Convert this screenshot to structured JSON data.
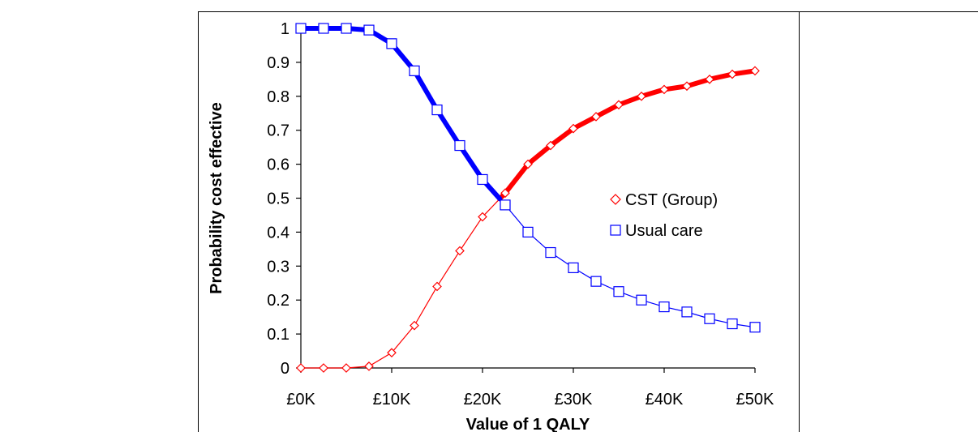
{
  "chart_data": {
    "type": "line",
    "xlabel": "Value of 1 QALY",
    "ylabel": "Probability cost effective",
    "x": [
      0,
      2500,
      5000,
      7500,
      10000,
      12500,
      15000,
      17500,
      20000,
      22500,
      25000,
      27500,
      30000,
      32500,
      35000,
      37500,
      40000,
      42500,
      45000,
      47500,
      50000
    ],
    "x_ticks": [
      0,
      10000,
      20000,
      30000,
      40000,
      50000
    ],
    "x_tick_labels": [
      "£0K",
      "£10K",
      "£20K",
      "£30K",
      "£40K",
      "£50K"
    ],
    "xlim": [
      0,
      50000
    ],
    "y_ticks": [
      0,
      0.1,
      0.2,
      0.3,
      0.4,
      0.5,
      0.6,
      0.7,
      0.8,
      0.9,
      1
    ],
    "y_tick_labels": [
      "0",
      "0.1",
      "0.2",
      "0.3",
      "0.4",
      "0.5",
      "0.6",
      "0.7",
      "0.8",
      "0.9",
      "1"
    ],
    "ylim": [
      0,
      1
    ],
    "grid": false,
    "legend_position": "right",
    "series": [
      {
        "name": "CST (Group)",
        "color": "#ff0000",
        "marker": "diamond",
        "values": [
          0,
          0,
          0,
          0.005,
          0.045,
          0.125,
          0.24,
          0.345,
          0.445,
          0.515,
          0.6,
          0.655,
          0.705,
          0.74,
          0.775,
          0.8,
          0.82,
          0.83,
          0.85,
          0.865,
          0.875
        ]
      },
      {
        "name": "Usual care",
        "color": "#0000ff",
        "marker": "square",
        "values": [
          1,
          1,
          1,
          0.995,
          0.955,
          0.875,
          0.76,
          0.655,
          0.555,
          0.48,
          0.4,
          0.34,
          0.295,
          0.255,
          0.225,
          0.2,
          0.18,
          0.165,
          0.145,
          0.13,
          0.12
        ]
      }
    ]
  }
}
